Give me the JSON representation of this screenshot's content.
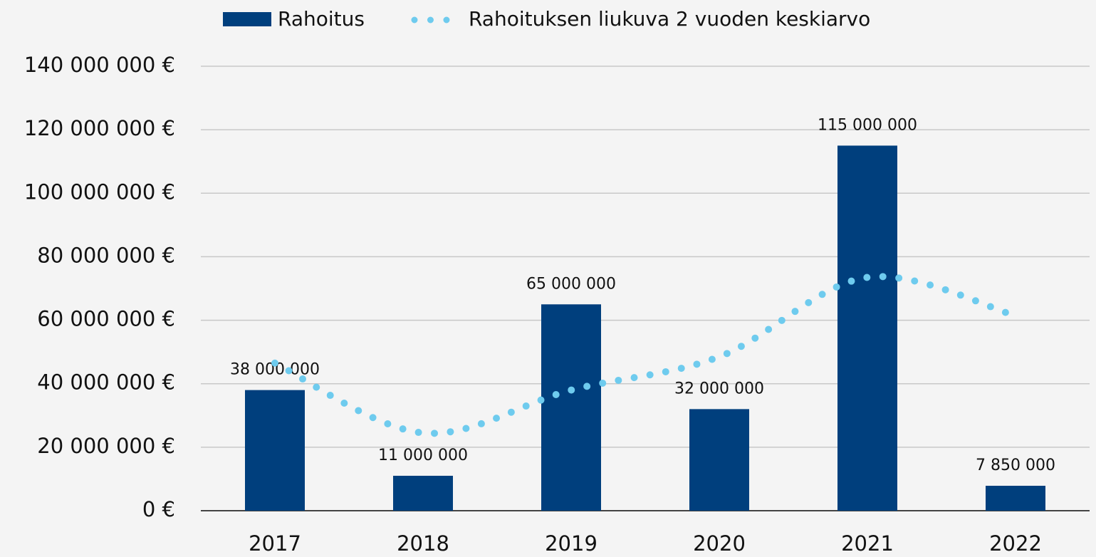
{
  "chart_data": {
    "type": "bar",
    "categories": [
      "2017",
      "2018",
      "2019",
      "2020",
      "2021",
      "2022"
    ],
    "series": [
      {
        "name": "Rahoitus",
        "type": "bar",
        "color": "#003f7d",
        "values": [
          38000000,
          11000000,
          65000000,
          32000000,
          115000000,
          7850000
        ],
        "value_labels": [
          "38 000 000",
          "11 000 000",
          "65 000 000",
          "32 000 000",
          "115 000 000",
          "7 850 000"
        ]
      },
      {
        "name": "Rahoituksen liukuva 2 vuoden keskiarvo",
        "type": "line",
        "color": "#6ecbee",
        "values": [
          46500000,
          24500000,
          38000000,
          48500000,
          73500000,
          61425000
        ]
      }
    ],
    "ylim": [
      0,
      140000000
    ],
    "yticks": [
      {
        "value": 0,
        "label": "0 €"
      },
      {
        "value": 20000000,
        "label": "20 000 000 €"
      },
      {
        "value": 40000000,
        "label": "40 000 000 €"
      },
      {
        "value": 60000000,
        "label": "60 000 000 €"
      },
      {
        "value": 80000000,
        "label": "80 000 000 €"
      },
      {
        "value": 100000000,
        "label": "100 000 000 €"
      },
      {
        "value": 120000000,
        "label": "120 000 000 €"
      },
      {
        "value": 140000000,
        "label": "140 000 000 €"
      }
    ],
    "grid": true,
    "legend": "top"
  }
}
